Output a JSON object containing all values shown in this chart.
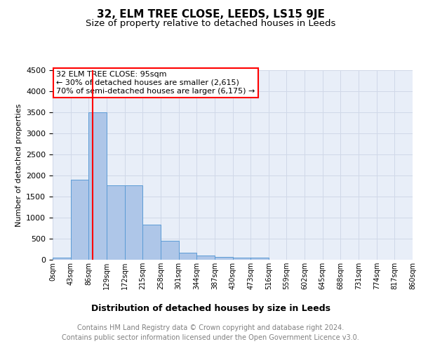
{
  "title": "32, ELM TREE CLOSE, LEEDS, LS15 9JE",
  "subtitle": "Size of property relative to detached houses in Leeds",
  "xlabel": "Distribution of detached houses by size in Leeds",
  "ylabel": "Number of detached properties",
  "bin_edges": [
    0,
    43,
    86,
    129,
    172,
    215,
    258,
    301,
    344,
    387,
    430,
    473,
    516,
    559,
    602,
    645,
    688,
    731,
    774,
    817,
    860
  ],
  "bin_labels": [
    "0sqm",
    "43sqm",
    "86sqm",
    "129sqm",
    "172sqm",
    "215sqm",
    "258sqm",
    "301sqm",
    "344sqm",
    "387sqm",
    "430sqm",
    "473sqm",
    "516sqm",
    "559sqm",
    "602sqm",
    "645sqm",
    "688sqm",
    "731sqm",
    "774sqm",
    "817sqm",
    "860sqm"
  ],
  "bar_heights": [
    50,
    1900,
    3500,
    1775,
    1775,
    840,
    450,
    175,
    100,
    65,
    50,
    50,
    0,
    0,
    0,
    0,
    0,
    0,
    0,
    0
  ],
  "bar_color": "#aec6e8",
  "bar_edge_color": "#5b9bd5",
  "grid_color": "#d0d8e8",
  "background_color": "#e8eef8",
  "red_line_x": 95,
  "annotation_box_text": "32 ELM TREE CLOSE: 95sqm\n← 30% of detached houses are smaller (2,615)\n70% of semi-detached houses are larger (6,175) →",
  "ylim": [
    0,
    4500
  ],
  "yticks": [
    0,
    500,
    1000,
    1500,
    2000,
    2500,
    3000,
    3500,
    4000,
    4500
  ],
  "footer_line1": "Contains HM Land Registry data © Crown copyright and database right 2024.",
  "footer_line2": "Contains public sector information licensed under the Open Government Licence v3.0.",
  "title_fontsize": 11,
  "subtitle_fontsize": 9.5,
  "annotation_fontsize": 8,
  "footer_fontsize": 7,
  "ylabel_fontsize": 8,
  "xlabel_fontsize": 9,
  "tick_fontsize": 7,
  "ytick_fontsize": 8
}
